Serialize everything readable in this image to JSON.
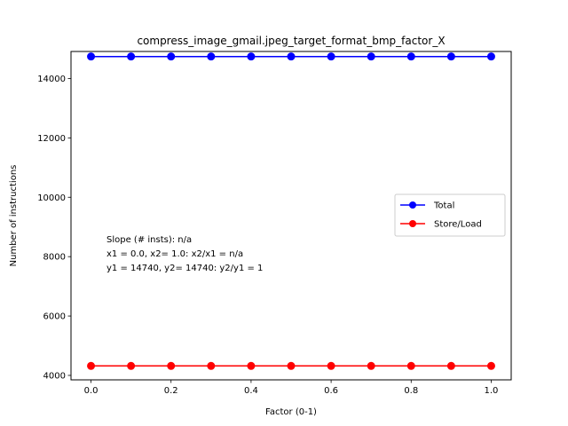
{
  "chart_data": {
    "type": "line",
    "title": "compress_image_gmail.jpeg_target_format_bmp_factor_X",
    "xlabel": "Factor (0-1)",
    "ylabel": "Number of instructions",
    "x": [
      0.0,
      0.1,
      0.2,
      0.3,
      0.4,
      0.5,
      0.6,
      0.7,
      0.8,
      0.9,
      1.0
    ],
    "xlim": [
      -0.05,
      1.05
    ],
    "ylim": [
      3850,
      14910
    ],
    "xticks": [
      0.0,
      0.2,
      0.4,
      0.6,
      0.8,
      1.0
    ],
    "xtick_labels": [
      "0.0",
      "0.2",
      "0.4",
      "0.6",
      "0.8",
      "1.0"
    ],
    "yticks": [
      4000,
      6000,
      8000,
      10000,
      12000,
      14000
    ],
    "ytick_labels": [
      "4000",
      "6000",
      "8000",
      "10000",
      "12000",
      "14000"
    ],
    "grid": false,
    "legend_position": "right",
    "series": [
      {
        "name": "Total",
        "color": "#0000ff",
        "marker": "circle",
        "values": [
          14740,
          14740,
          14740,
          14740,
          14740,
          14740,
          14740,
          14740,
          14740,
          14740,
          14740
        ]
      },
      {
        "name": "Store/Load",
        "color": "#ff0000",
        "marker": "circle",
        "values": [
          4320,
          4320,
          4320,
          4320,
          4320,
          4320,
          4320,
          4320,
          4320,
          4320,
          4320
        ]
      }
    ],
    "annotation_lines": [
      "Slope (# insts): n/a",
      "x1 = 0.0, x2= 1.0: x2/x1 = n/a",
      "y1 = 14740, y2= 14740: y2/y1 = 1"
    ]
  }
}
